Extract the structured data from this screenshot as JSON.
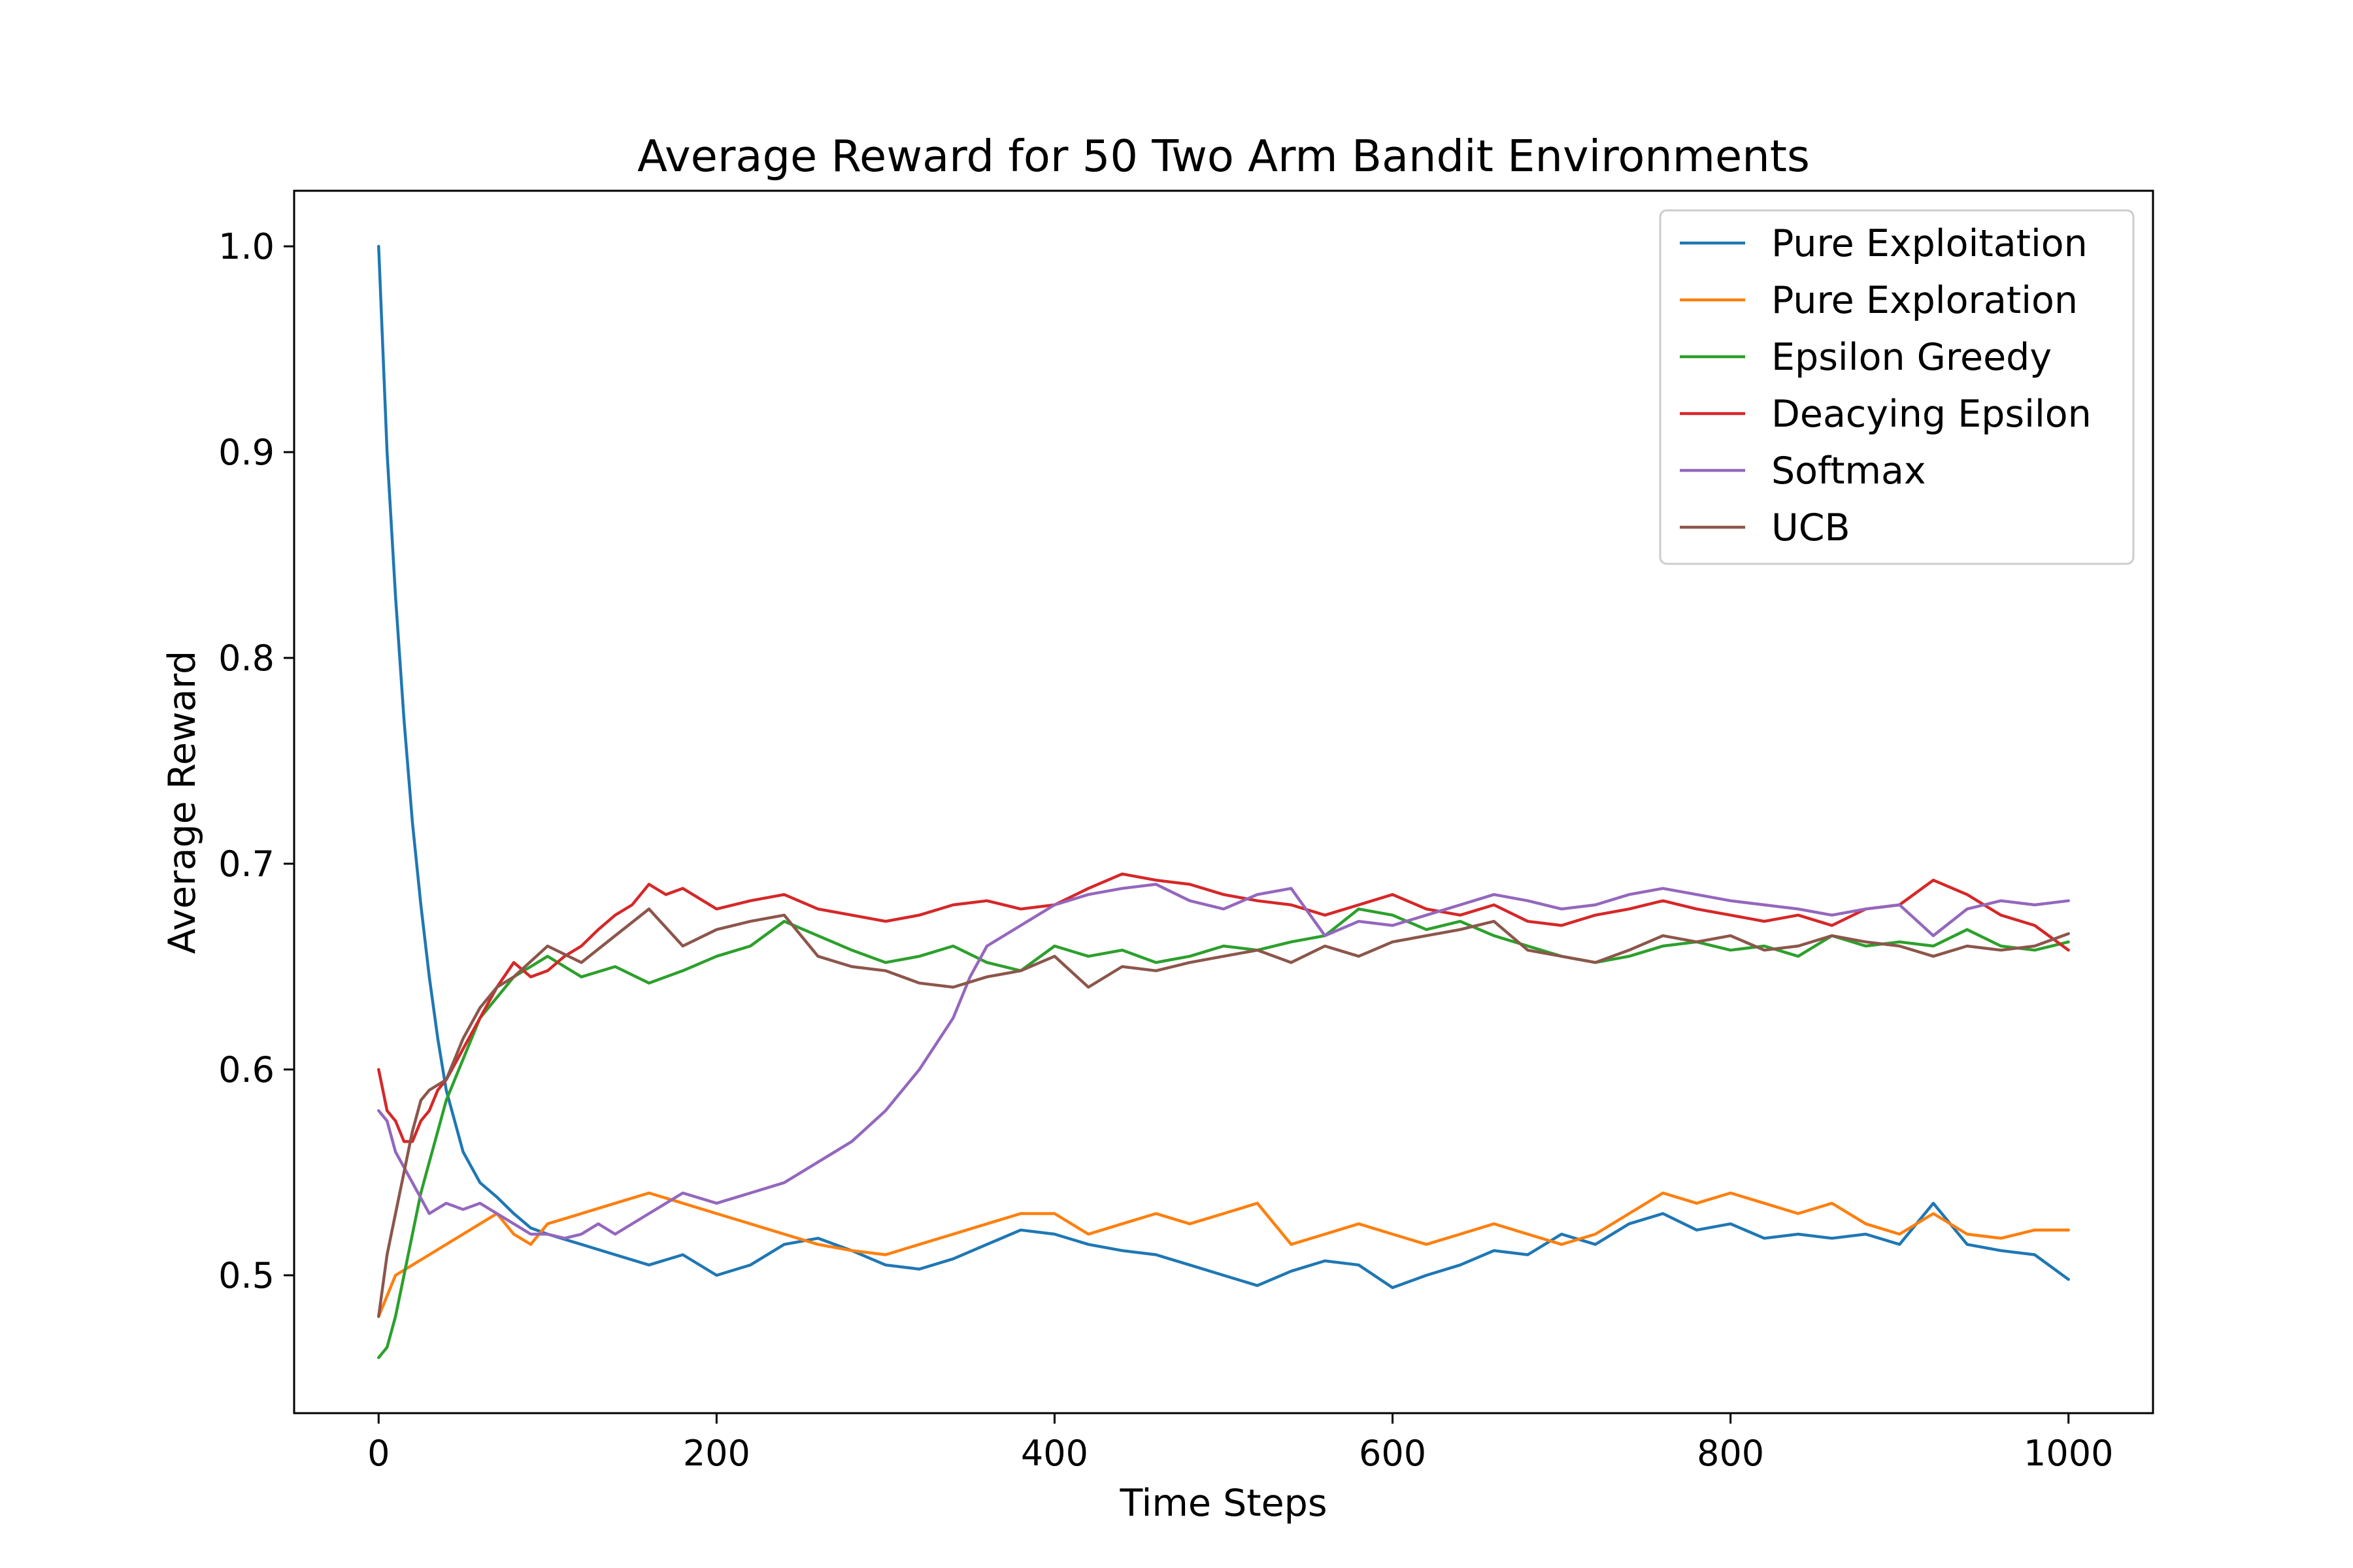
{
  "chart_data": {
    "type": "line",
    "title": "Average Reward for 50 Two Arm Bandit Environments",
    "xlabel": "Time Steps",
    "ylabel": "Average Reward",
    "xlim": [
      -50,
      1050
    ],
    "ylim": [
      0.433,
      1.027
    ],
    "xticks": [
      0,
      200,
      400,
      600,
      800,
      1000
    ],
    "yticks": [
      0.5,
      0.6,
      0.7,
      0.8,
      0.9,
      1.0
    ],
    "xtick_labels": [
      "0",
      "200",
      "400",
      "600",
      "800",
      "1000"
    ],
    "ytick_labels": [
      "0.5",
      "0.6",
      "0.7",
      "0.8",
      "0.9",
      "1.0"
    ],
    "grid": false,
    "legend_position": "top-right",
    "series": [
      {
        "name": "Pure Exploitation",
        "color": "#1f77b4",
        "x": [
          0,
          5,
          10,
          15,
          20,
          25,
          30,
          35,
          40,
          45,
          50,
          60,
          70,
          80,
          90,
          100,
          120,
          140,
          160,
          180,
          200,
          220,
          240,
          260,
          280,
          300,
          320,
          340,
          360,
          380,
          400,
          420,
          440,
          460,
          480,
          500,
          520,
          540,
          560,
          580,
          600,
          620,
          640,
          660,
          680,
          700,
          720,
          740,
          760,
          780,
          800,
          820,
          840,
          860,
          880,
          900,
          920,
          940,
          960,
          980,
          1000
        ],
        "y": [
          1.0,
          0.9,
          0.83,
          0.77,
          0.72,
          0.68,
          0.645,
          0.615,
          0.59,
          0.575,
          0.56,
          0.545,
          0.538,
          0.53,
          0.523,
          0.52,
          0.515,
          0.51,
          0.505,
          0.51,
          0.5,
          0.505,
          0.515,
          0.518,
          0.512,
          0.505,
          0.503,
          0.508,
          0.515,
          0.522,
          0.52,
          0.515,
          0.512,
          0.51,
          0.505,
          0.5,
          0.495,
          0.502,
          0.507,
          0.505,
          0.494,
          0.5,
          0.505,
          0.512,
          0.51,
          0.52,
          0.515,
          0.525,
          0.53,
          0.522,
          0.525,
          0.518,
          0.52,
          0.518,
          0.52,
          0.515,
          0.535,
          0.515,
          0.512,
          0.51,
          0.498
        ]
      },
      {
        "name": "Pure Exploration",
        "color": "#ff7f0e",
        "x": [
          0,
          10,
          20,
          30,
          40,
          50,
          60,
          70,
          80,
          90,
          100,
          120,
          140,
          160,
          180,
          200,
          220,
          240,
          260,
          280,
          300,
          320,
          340,
          360,
          380,
          400,
          420,
          440,
          460,
          480,
          500,
          520,
          540,
          560,
          580,
          600,
          620,
          640,
          660,
          680,
          700,
          720,
          740,
          760,
          780,
          800,
          820,
          840,
          860,
          880,
          900,
          920,
          940,
          960,
          980,
          1000
        ],
        "y": [
          0.48,
          0.5,
          0.505,
          0.51,
          0.515,
          0.52,
          0.525,
          0.53,
          0.52,
          0.515,
          0.525,
          0.53,
          0.535,
          0.54,
          0.535,
          0.53,
          0.525,
          0.52,
          0.515,
          0.512,
          0.51,
          0.515,
          0.52,
          0.525,
          0.53,
          0.53,
          0.52,
          0.525,
          0.53,
          0.525,
          0.53,
          0.535,
          0.515,
          0.52,
          0.525,
          0.52,
          0.515,
          0.52,
          0.525,
          0.52,
          0.515,
          0.52,
          0.53,
          0.54,
          0.535,
          0.54,
          0.535,
          0.53,
          0.535,
          0.525,
          0.52,
          0.53,
          0.52,
          0.518,
          0.522,
          0.522
        ]
      },
      {
        "name": "Epsilon Greedy",
        "color": "#2ca02c",
        "x": [
          0,
          5,
          10,
          15,
          20,
          25,
          30,
          35,
          40,
          45,
          50,
          55,
          60,
          70,
          80,
          90,
          100,
          120,
          140,
          160,
          180,
          200,
          220,
          240,
          260,
          280,
          300,
          320,
          340,
          360,
          380,
          400,
          420,
          440,
          460,
          480,
          500,
          520,
          540,
          560,
          580,
          600,
          620,
          640,
          660,
          680,
          700,
          720,
          740,
          760,
          780,
          800,
          820,
          840,
          860,
          880,
          900,
          920,
          940,
          960,
          980,
          1000
        ],
        "y": [
          0.46,
          0.465,
          0.48,
          0.5,
          0.52,
          0.54,
          0.555,
          0.57,
          0.585,
          0.595,
          0.605,
          0.615,
          0.625,
          0.635,
          0.645,
          0.65,
          0.655,
          0.645,
          0.65,
          0.642,
          0.648,
          0.655,
          0.66,
          0.672,
          0.665,
          0.658,
          0.652,
          0.655,
          0.66,
          0.652,
          0.648,
          0.66,
          0.655,
          0.658,
          0.652,
          0.655,
          0.66,
          0.658,
          0.662,
          0.665,
          0.678,
          0.675,
          0.668,
          0.672,
          0.665,
          0.66,
          0.655,
          0.652,
          0.655,
          0.66,
          0.662,
          0.658,
          0.66,
          0.655,
          0.665,
          0.66,
          0.662,
          0.66,
          0.668,
          0.66,
          0.658,
          0.662
        ]
      },
      {
        "name": "Deacying Epsilon",
        "color": "#d62728",
        "x": [
          0,
          5,
          10,
          15,
          20,
          25,
          30,
          35,
          40,
          50,
          60,
          70,
          80,
          90,
          100,
          110,
          120,
          130,
          140,
          150,
          160,
          170,
          180,
          200,
          220,
          240,
          260,
          280,
          300,
          320,
          340,
          360,
          380,
          400,
          420,
          440,
          460,
          480,
          500,
          520,
          540,
          560,
          580,
          600,
          620,
          640,
          660,
          680,
          700,
          720,
          740,
          760,
          780,
          800,
          820,
          840,
          860,
          880,
          900,
          920,
          940,
          960,
          980,
          1000
        ],
        "y": [
          0.6,
          0.58,
          0.575,
          0.565,
          0.565,
          0.575,
          0.58,
          0.59,
          0.595,
          0.61,
          0.625,
          0.64,
          0.652,
          0.645,
          0.648,
          0.655,
          0.66,
          0.668,
          0.675,
          0.68,
          0.69,
          0.685,
          0.688,
          0.678,
          0.682,
          0.685,
          0.678,
          0.675,
          0.672,
          0.675,
          0.68,
          0.682,
          0.678,
          0.68,
          0.688,
          0.695,
          0.692,
          0.69,
          0.685,
          0.682,
          0.68,
          0.675,
          0.68,
          0.685,
          0.678,
          0.675,
          0.68,
          0.672,
          0.67,
          0.675,
          0.678,
          0.682,
          0.678,
          0.675,
          0.672,
          0.675,
          0.67,
          0.678,
          0.68,
          0.692,
          0.685,
          0.675,
          0.67,
          0.658
        ]
      },
      {
        "name": "Softmax",
        "color": "#9467bd",
        "x": [
          0,
          5,
          10,
          20,
          30,
          40,
          50,
          60,
          70,
          80,
          90,
          100,
          110,
          120,
          130,
          140,
          160,
          180,
          200,
          220,
          240,
          260,
          280,
          300,
          320,
          340,
          350,
          360,
          380,
          400,
          420,
          440,
          460,
          480,
          500,
          520,
          540,
          560,
          580,
          600,
          620,
          640,
          660,
          680,
          700,
          720,
          740,
          760,
          780,
          800,
          820,
          840,
          860,
          880,
          900,
          920,
          940,
          960,
          980,
          1000
        ],
        "y": [
          0.58,
          0.575,
          0.56,
          0.545,
          0.53,
          0.535,
          0.532,
          0.535,
          0.53,
          0.525,
          0.52,
          0.52,
          0.518,
          0.52,
          0.525,
          0.52,
          0.53,
          0.54,
          0.535,
          0.54,
          0.545,
          0.555,
          0.565,
          0.58,
          0.6,
          0.625,
          0.645,
          0.66,
          0.67,
          0.68,
          0.685,
          0.688,
          0.69,
          0.682,
          0.678,
          0.685,
          0.688,
          0.665,
          0.672,
          0.67,
          0.675,
          0.68,
          0.685,
          0.682,
          0.678,
          0.68,
          0.685,
          0.688,
          0.685,
          0.682,
          0.68,
          0.678,
          0.675,
          0.678,
          0.68,
          0.665,
          0.678,
          0.682,
          0.68,
          0.682
        ]
      },
      {
        "name": "UCB",
        "color": "#8c564b",
        "x": [
          0,
          5,
          10,
          15,
          20,
          25,
          30,
          40,
          50,
          60,
          70,
          80,
          100,
          120,
          140,
          160,
          180,
          200,
          220,
          240,
          260,
          280,
          300,
          320,
          340,
          360,
          380,
          400,
          420,
          440,
          460,
          480,
          500,
          520,
          540,
          560,
          580,
          600,
          620,
          640,
          660,
          680,
          700,
          720,
          740,
          760,
          780,
          800,
          820,
          840,
          860,
          880,
          900,
          920,
          940,
          960,
          980,
          1000
        ],
        "y": [
          0.48,
          0.51,
          0.53,
          0.55,
          0.57,
          0.585,
          0.59,
          0.595,
          0.615,
          0.63,
          0.64,
          0.645,
          0.66,
          0.652,
          0.665,
          0.678,
          0.66,
          0.668,
          0.672,
          0.675,
          0.655,
          0.65,
          0.648,
          0.642,
          0.64,
          0.645,
          0.648,
          0.655,
          0.64,
          0.65,
          0.648,
          0.652,
          0.655,
          0.658,
          0.652,
          0.66,
          0.655,
          0.662,
          0.665,
          0.668,
          0.672,
          0.658,
          0.655,
          0.652,
          0.658,
          0.665,
          0.662,
          0.665,
          0.658,
          0.66,
          0.665,
          0.662,
          0.66,
          0.655,
          0.66,
          0.658,
          0.66,
          0.666
        ]
      }
    ]
  }
}
